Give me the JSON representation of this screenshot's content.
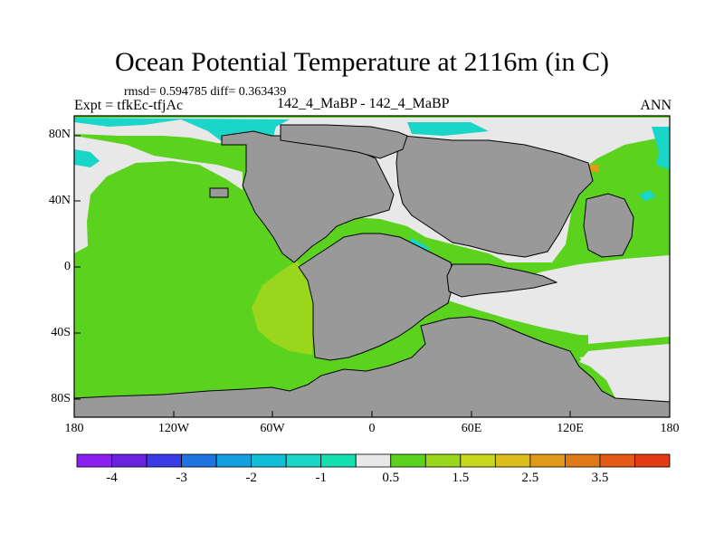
{
  "title": "Ocean Potential Temperature at 2116m (in C)",
  "stats": "rmsd= 0.594785 diff= 0.363439",
  "expt": "Expt = tfkEc-tfjAc",
  "case": "142_4_MaBP - 142_4_MaBP",
  "season": "ANN",
  "lat_labels": [
    "80N",
    "40N",
    "0",
    "40S",
    "80S"
  ],
  "lon_labels": [
    "180",
    "120W",
    "60W",
    "0",
    "60E",
    "120E",
    "180"
  ],
  "colorbar": {
    "colors": [
      "#8a1ff0",
      "#6a22e0",
      "#3a3ae6",
      "#1f73e0",
      "#14a0e0",
      "#10bed8",
      "#19d6c8",
      "#16e0b0",
      "#e8e8e8",
      "#5ad21e",
      "#9ad61c",
      "#c8d81e",
      "#dcbd1e",
      "#e09a1a",
      "#e07a16",
      "#e45a14",
      "#e23a12"
    ],
    "labels": [
      "-4",
      "-3",
      "-2",
      "-1",
      "0.5",
      "1.5",
      "2.5",
      "3.5"
    ]
  },
  "colors": {
    "land": "#999999",
    "ocean_green": "#5ad21e",
    "ocean_yellowgreen": "#9ad61c",
    "near_zero": "#e8e8e8",
    "cyan": "#19d6c8"
  }
}
